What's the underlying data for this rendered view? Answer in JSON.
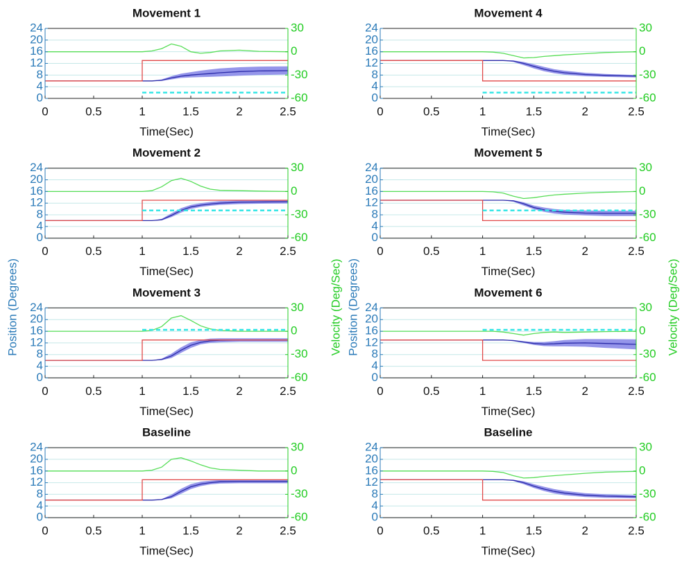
{
  "chart_data": [
    {
      "type": "line",
      "title": "Movement 1",
      "xlabel": "Time(Sec)",
      "xlim": [
        0,
        2.5
      ],
      "xticks": [
        0,
        0.5,
        1,
        1.5,
        2,
        2.5
      ],
      "ylim": [
        0,
        24
      ],
      "yticks": [
        0,
        4,
        8,
        12,
        16,
        20,
        24
      ],
      "y2lim": [
        -60,
        30
      ],
      "y2ticks": [
        -60,
        -30,
        0,
        30
      ],
      "grid": true,
      "x": [
        0,
        0.5,
        1,
        1.1,
        1.2,
        1.3,
        1.4,
        1.5,
        1.6,
        1.7,
        1.8,
        2,
        2.2,
        2.5
      ],
      "series": [
        {
          "color": "#8383e6",
          "values": [
            6,
            6,
            6,
            6,
            6.5,
            7.6,
            8.5,
            9,
            9.5,
            9.9,
            10.3,
            10.7,
            10.9,
            11
          ],
          "lower": [
            6,
            6,
            6,
            6,
            6,
            6.5,
            7,
            7.2,
            7.3,
            7.4,
            7.5,
            7.8,
            8,
            8.2
          ]
        },
        {
          "color": "#2a2aa8",
          "values": [
            6,
            6,
            6,
            6,
            6.2,
            7,
            7.6,
            8,
            8.3,
            8.5,
            8.8,
            9.2,
            9.4,
            9.5
          ]
        },
        {
          "color": "#e04848",
          "x": [
            0,
            1,
            1,
            2.5
          ],
          "values": [
            6,
            6,
            13,
            13
          ]
        },
        {
          "color": "#55dd55",
          "axis": "y2",
          "values": [
            0,
            0,
            0,
            1,
            4,
            10,
            7,
            0,
            -2,
            -1,
            1,
            2,
            0.5,
            0
          ]
        },
        {
          "color": "#33e6e6",
          "dash": true,
          "x": [
            1,
            2.5
          ],
          "values": [
            2,
            2
          ]
        }
      ]
    },
    {
      "type": "line",
      "title": "Movement 4",
      "xlabel": "Time(Sec)",
      "xlim": [
        0,
        2.5
      ],
      "xticks": [
        0,
        0.5,
        1,
        1.5,
        2,
        2.5
      ],
      "ylim": [
        0,
        24
      ],
      "yticks": [
        0,
        4,
        8,
        12,
        16,
        20,
        24
      ],
      "y2lim": [
        -60,
        30
      ],
      "y2ticks": [
        -60,
        -30,
        0,
        30
      ],
      "grid": true,
      "x": [
        0,
        0.5,
        1,
        1.1,
        1.2,
        1.3,
        1.4,
        1.5,
        1.6,
        1.7,
        1.8,
        2,
        2.2,
        2.5
      ],
      "series": [
        {
          "color": "#8383e6",
          "values": [
            13,
            13,
            13,
            13,
            13,
            13,
            12.5,
            11.7,
            10.8,
            10,
            9.5,
            8.8,
            8.4,
            8
          ],
          "lower": [
            13,
            13,
            13,
            13,
            13,
            12.5,
            11.4,
            10.3,
            9.3,
            8.6,
            8.1,
            7.6,
            7.4,
            7.2
          ]
        },
        {
          "color": "#2a2aa8",
          "values": [
            13,
            13,
            13,
            13,
            13,
            12.8,
            12,
            11,
            10,
            9.3,
            8.8,
            8.2,
            7.9,
            7.6
          ]
        },
        {
          "color": "#e04848",
          "x": [
            0,
            1,
            1,
            2.5
          ],
          "values": [
            13,
            13,
            6,
            6
          ]
        },
        {
          "color": "#55dd55",
          "axis": "y2",
          "values": [
            0,
            0,
            0,
            -0.5,
            -2,
            -5,
            -8,
            -7.5,
            -6,
            -5,
            -4,
            -2.5,
            -1,
            0
          ]
        },
        {
          "color": "#33e6e6",
          "dash": true,
          "x": [
            1,
            2.5
          ],
          "values": [
            2,
            2
          ]
        }
      ]
    },
    {
      "type": "line",
      "title": "Movement 2",
      "xlabel": "Time(Sec)",
      "xlim": [
        0,
        2.5
      ],
      "xticks": [
        0,
        0.5,
        1,
        1.5,
        2,
        2.5
      ],
      "ylim": [
        0,
        24
      ],
      "yticks": [
        0,
        4,
        8,
        12,
        16,
        20,
        24
      ],
      "y2lim": [
        -60,
        30
      ],
      "y2ticks": [
        -60,
        -30,
        0,
        30
      ],
      "grid": true,
      "x": [
        0,
        0.5,
        1,
        1.1,
        1.2,
        1.3,
        1.4,
        1.5,
        1.6,
        1.7,
        1.8,
        2,
        2.2,
        2.5
      ],
      "series": [
        {
          "color": "#8383e6",
          "values": [
            6,
            6,
            6,
            6,
            6.6,
            8.5,
            10.3,
            11.4,
            12,
            12.4,
            12.7,
            12.9,
            13,
            13
          ],
          "lower": [
            6,
            6,
            6,
            6,
            6.1,
            7.2,
            8.8,
            10,
            10.7,
            11.1,
            11.4,
            11.7,
            11.8,
            11.9
          ]
        },
        {
          "color": "#2a2aa8",
          "values": [
            6,
            6,
            6,
            6,
            6.3,
            7.8,
            9.5,
            10.7,
            11.3,
            11.7,
            12,
            12.3,
            12.4,
            12.5
          ]
        },
        {
          "color": "#e04848",
          "x": [
            0,
            1,
            1,
            2.5
          ],
          "values": [
            6,
            6,
            13,
            13
          ]
        },
        {
          "color": "#55dd55",
          "axis": "y2",
          "values": [
            0,
            0,
            0,
            1,
            6,
            14,
            17,
            13,
            7,
            3,
            1.5,
            1,
            0.5,
            0
          ]
        },
        {
          "color": "#33e6e6",
          "dash": true,
          "x": [
            1,
            2.5
          ],
          "values": [
            9.5,
            9.5
          ]
        }
      ]
    },
    {
      "type": "line",
      "title": "Movement 5",
      "xlabel": "Time(Sec)",
      "xlim": [
        0,
        2.5
      ],
      "xticks": [
        0,
        0.5,
        1,
        1.5,
        2,
        2.5
      ],
      "ylim": [
        0,
        24
      ],
      "yticks": [
        0,
        4,
        8,
        12,
        16,
        20,
        24
      ],
      "y2lim": [
        -60,
        30
      ],
      "y2ticks": [
        -60,
        -30,
        0,
        30
      ],
      "grid": true,
      "x": [
        0,
        0.5,
        1,
        1.1,
        1.2,
        1.3,
        1.4,
        1.5,
        1.6,
        1.7,
        1.8,
        2,
        2.2,
        2.5
      ],
      "series": [
        {
          "color": "#8383e6",
          "values": [
            13,
            13,
            13,
            13,
            13,
            13,
            12.3,
            11.2,
            10.5,
            10,
            9.7,
            9.5,
            9.4,
            9.4
          ],
          "lower": [
            13,
            13,
            13,
            13,
            13,
            12.5,
            11.2,
            9.9,
            9,
            8.4,
            8.1,
            7.8,
            7.6,
            7.6
          ]
        },
        {
          "color": "#2a2aa8",
          "values": [
            13,
            13,
            13,
            13,
            13,
            12.8,
            11.8,
            10.5,
            9.7,
            9.2,
            8.9,
            8.6,
            8.5,
            8.5
          ]
        },
        {
          "color": "#e04848",
          "x": [
            0,
            1,
            1,
            2.5
          ],
          "values": [
            13,
            13,
            6,
            6
          ]
        },
        {
          "color": "#55dd55",
          "axis": "y2",
          "values": [
            0,
            0,
            0,
            -0.5,
            -2,
            -6,
            -9,
            -8,
            -6,
            -4.5,
            -3.5,
            -2,
            -1,
            0
          ]
        },
        {
          "color": "#33e6e6",
          "dash": true,
          "x": [
            1,
            2.5
          ],
          "values": [
            9.5,
            9.5
          ]
        }
      ]
    },
    {
      "type": "line",
      "title": "Movement 3",
      "xlabel": "Time(Sec)",
      "ylabel": "Position (Degrees)",
      "y2label": "Velocity (Deg/Sec)",
      "xlim": [
        0,
        2.5
      ],
      "xticks": [
        0,
        0.5,
        1,
        1.5,
        2,
        2.5
      ],
      "ylim": [
        0,
        24
      ],
      "yticks": [
        0,
        4,
        8,
        12,
        16,
        20,
        24
      ],
      "y2lim": [
        -60,
        30
      ],
      "y2ticks": [
        -60,
        -30,
        0,
        30
      ],
      "grid": true,
      "x": [
        0,
        0.5,
        1,
        1.1,
        1.2,
        1.3,
        1.4,
        1.5,
        1.6,
        1.7,
        1.8,
        2,
        2.2,
        2.5
      ],
      "series": [
        {
          "color": "#8383e6",
          "values": [
            6,
            6,
            6,
            6,
            6.6,
            8.3,
            10.5,
            12.2,
            13,
            13.5,
            13.6,
            13.6,
            13.6,
            13.6
          ],
          "lower": [
            6,
            6,
            6,
            6,
            6.1,
            6.8,
            8.6,
            10.3,
            11.5,
            12,
            12.2,
            12.4,
            12.4,
            12.4
          ]
        },
        {
          "color": "#2a2aa8",
          "values": [
            6,
            6,
            6,
            6,
            6.3,
            7.5,
            9.5,
            11.2,
            12.2,
            12.7,
            12.9,
            13,
            13,
            13
          ]
        },
        {
          "color": "#e04848",
          "x": [
            0,
            1,
            1,
            2.5
          ],
          "values": [
            6,
            6,
            13,
            13
          ]
        },
        {
          "color": "#55dd55",
          "axis": "y2",
          "values": [
            0,
            0,
            0,
            1,
            6,
            17,
            20,
            14,
            7,
            3,
            1,
            0,
            0,
            0
          ]
        },
        {
          "color": "#33e6e6",
          "dash": true,
          "x": [
            1,
            2.5
          ],
          "values": [
            16.5,
            16.5
          ]
        }
      ]
    },
    {
      "type": "line",
      "title": "Movement 6",
      "xlabel": "Time(Sec)",
      "ylabel": "Position (Degrees)",
      "y2label": "Velocity (Deg/Sec)",
      "xlim": [
        0,
        2.5
      ],
      "xticks": [
        0,
        0.5,
        1,
        1.5,
        2,
        2.5
      ],
      "ylim": [
        0,
        24
      ],
      "yticks": [
        0,
        4,
        8,
        12,
        16,
        20,
        24
      ],
      "y2lim": [
        -60,
        30
      ],
      "y2ticks": [
        -60,
        -30,
        0,
        30
      ],
      "grid": true,
      "x": [
        0,
        0.5,
        1,
        1.1,
        1.2,
        1.3,
        1.4,
        1.5,
        1.6,
        1.7,
        1.8,
        2,
        2.2,
        2.5
      ],
      "series": [
        {
          "color": "#8383e6",
          "values": [
            13,
            13,
            13,
            13,
            13,
            13,
            12.6,
            12.3,
            12.3,
            12.6,
            13,
            13.3,
            13.3,
            13.2
          ],
          "lower": [
            13,
            13,
            13,
            13,
            13,
            12.6,
            12,
            11.3,
            10.9,
            10.8,
            10.8,
            10.7,
            10.3,
            9.8
          ]
        },
        {
          "color": "#2a2aa8",
          "values": [
            13,
            13,
            13,
            13,
            13,
            12.8,
            12.3,
            11.8,
            11.6,
            11.7,
            11.9,
            12,
            11.8,
            11.5
          ]
        },
        {
          "color": "#e04848",
          "x": [
            0,
            1,
            1,
            2.5
          ],
          "values": [
            13,
            13,
            6,
            6
          ]
        },
        {
          "color": "#55dd55",
          "axis": "y2",
          "values": [
            0,
            0,
            0,
            0,
            -1,
            -3,
            -5,
            -3,
            -1.5,
            -1,
            -1.5,
            -1,
            -0.5,
            0
          ]
        },
        {
          "color": "#33e6e6",
          "dash": true,
          "x": [
            1,
            2.5
          ],
          "values": [
            16.5,
            16.5
          ]
        }
      ]
    },
    {
      "type": "line",
      "title": "Baseline",
      "xlabel": "Time(Sec)",
      "xlim": [
        0,
        2.5
      ],
      "xticks": [
        0,
        0.5,
        1,
        1.5,
        2,
        2.5
      ],
      "ylim": [
        0,
        24
      ],
      "yticks": [
        0,
        4,
        8,
        12,
        16,
        20,
        24
      ],
      "y2lim": [
        -60,
        30
      ],
      "y2ticks": [
        -60,
        -30,
        0,
        30
      ],
      "grid": true,
      "x": [
        0,
        0.5,
        1,
        1.1,
        1.2,
        1.3,
        1.4,
        1.5,
        1.6,
        1.7,
        1.8,
        2,
        2.2,
        2.5
      ],
      "series": [
        {
          "color": "#8383e6",
          "values": [
            6,
            6,
            6,
            6,
            6.4,
            7.9,
            9.9,
            11.5,
            12.3,
            12.7,
            12.9,
            12.9,
            12.9,
            12.9
          ],
          "lower": [
            6,
            6,
            6,
            6,
            6.1,
            6.6,
            8.2,
            9.8,
            10.8,
            11.4,
            11.7,
            11.8,
            11.8,
            11.8
          ]
        },
        {
          "color": "#2a2aa8",
          "values": [
            6,
            6,
            6,
            6,
            6.2,
            7.2,
            9,
            10.6,
            11.5,
            12,
            12.3,
            12.4,
            12.4,
            12.4
          ]
        },
        {
          "color": "#e04848",
          "x": [
            0,
            1,
            1,
            2.5
          ],
          "values": [
            6,
            6,
            13,
            13
          ]
        },
        {
          "color": "#55dd55",
          "axis": "y2",
          "values": [
            0,
            0,
            0,
            1,
            5,
            15,
            17,
            13,
            8,
            4,
            2,
            1,
            0,
            0
          ]
        }
      ]
    },
    {
      "type": "line",
      "title": "Baseline",
      "xlabel": "Time(Sec)",
      "xlim": [
        0,
        2.5
      ],
      "xticks": [
        0,
        0.5,
        1,
        1.5,
        2,
        2.5
      ],
      "ylim": [
        0,
        24
      ],
      "yticks": [
        0,
        4,
        8,
        12,
        16,
        20,
        24
      ],
      "y2lim": [
        -60,
        30
      ],
      "y2ticks": [
        -60,
        -30,
        0,
        30
      ],
      "grid": true,
      "x": [
        0,
        0.5,
        1,
        1.1,
        1.2,
        1.3,
        1.4,
        1.5,
        1.6,
        1.7,
        1.8,
        2,
        2.2,
        2.5
      ],
      "series": [
        {
          "color": "#8383e6",
          "values": [
            13,
            13,
            13,
            13,
            13,
            13,
            12.5,
            11.5,
            10.6,
            9.8,
            9.2,
            8.4,
            8,
            7.7
          ],
          "lower": [
            13,
            13,
            13,
            13,
            13,
            12.6,
            11.5,
            10.2,
            9.1,
            8.3,
            7.7,
            7.1,
            6.8,
            6.6
          ]
        },
        {
          "color": "#2a2aa8",
          "values": [
            13,
            13,
            13,
            13,
            13,
            12.8,
            12,
            10.8,
            9.8,
            9,
            8.4,
            7.7,
            7.4,
            7.2
          ]
        },
        {
          "color": "#e04848",
          "x": [
            0,
            1,
            1,
            2.5
          ],
          "values": [
            13,
            13,
            6,
            6
          ]
        },
        {
          "color": "#55dd55",
          "axis": "y2",
          "values": [
            0,
            0,
            0,
            -0.5,
            -2,
            -6,
            -9,
            -8.5,
            -7,
            -6,
            -5,
            -3,
            -1.5,
            -0.5
          ]
        }
      ]
    }
  ]
}
